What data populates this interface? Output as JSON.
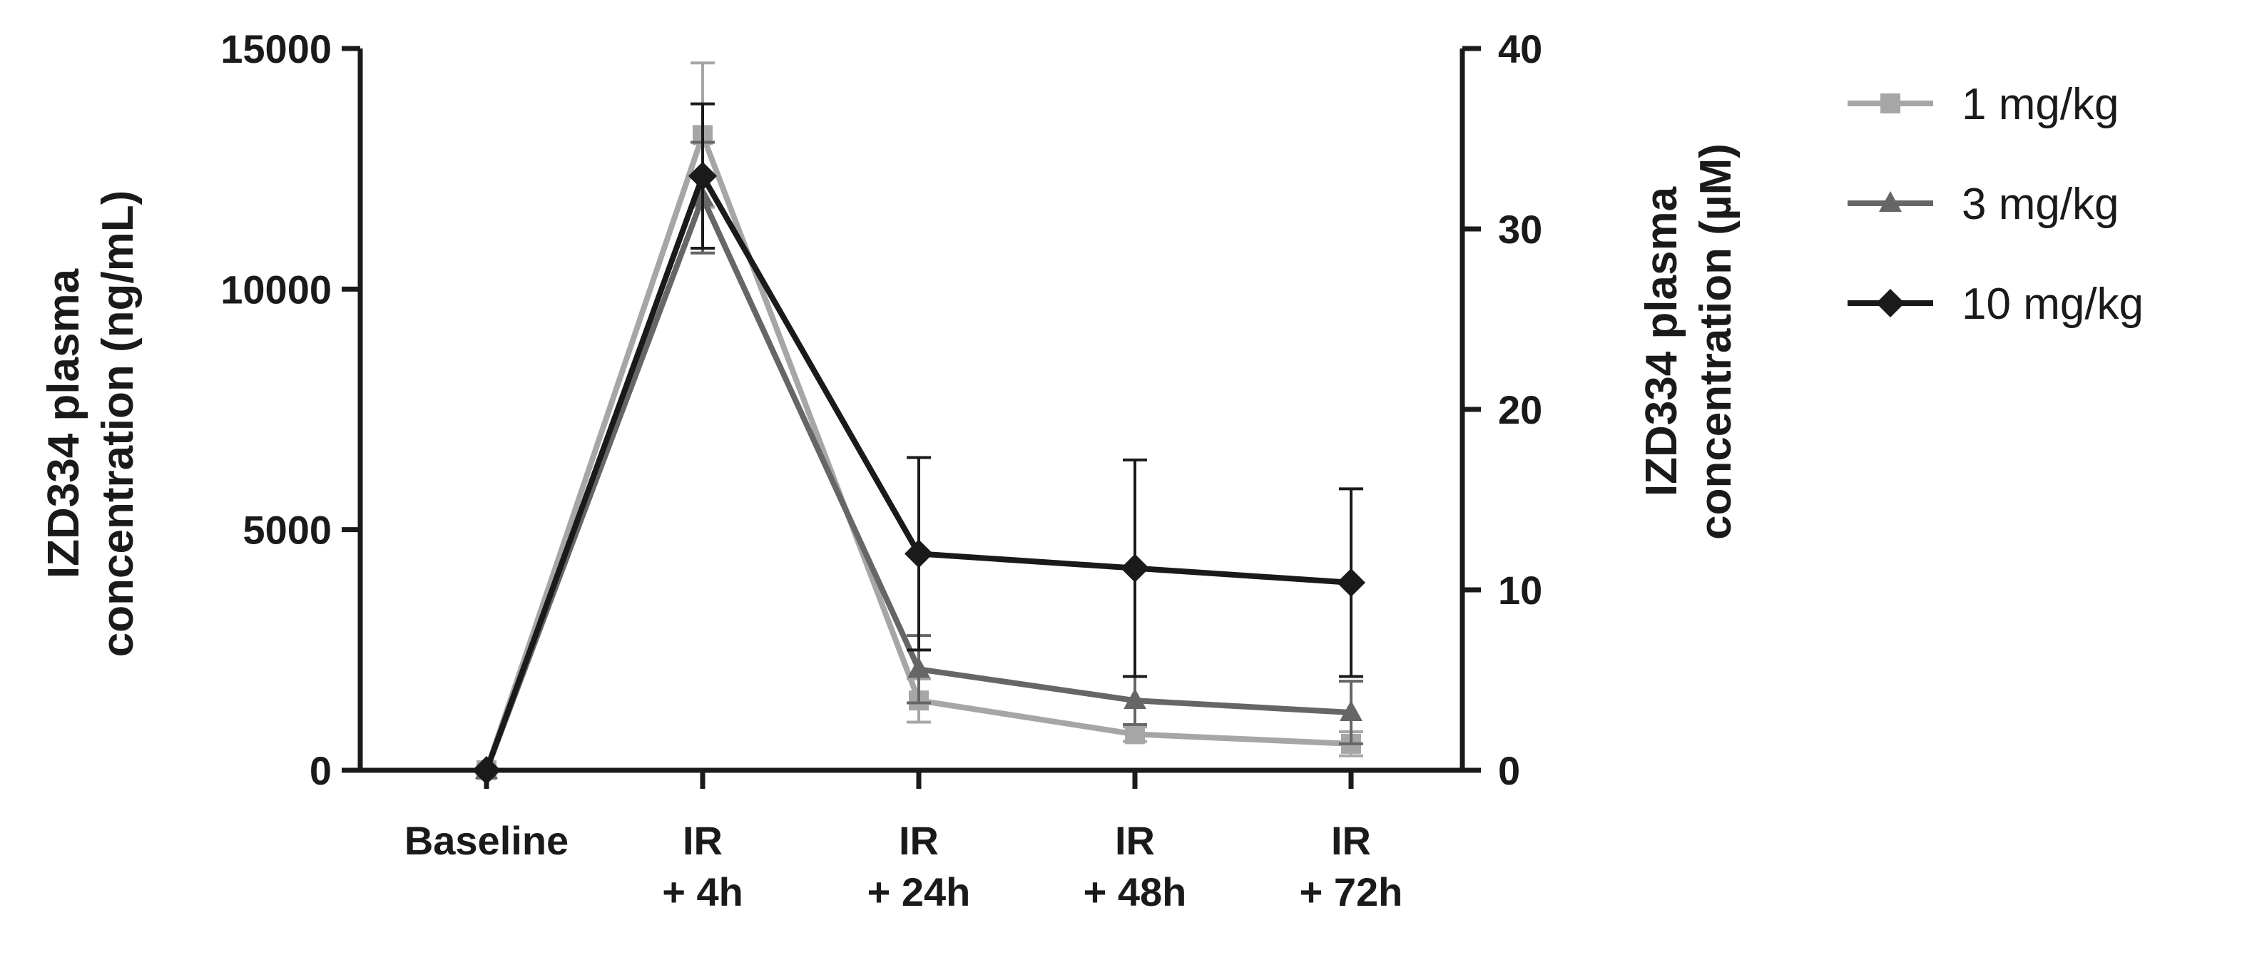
{
  "chart_data": {
    "type": "line",
    "categories": [
      [
        "Baseline"
      ],
      [
        "IR",
        "+ 4h"
      ],
      [
        "IR",
        "+ 24h"
      ],
      [
        "IR",
        "+ 48h"
      ],
      [
        "IR",
        "+ 72h"
      ]
    ],
    "ylabel": [
      "IZD334 plasma",
      "concentration (ng/mL)"
    ],
    "ylim": [
      0,
      15000
    ],
    "yticks": [
      "0",
      "5000",
      "10000",
      "15000"
    ],
    "y2label": [
      "IZD334 plasma",
      "concentration (µM)"
    ],
    "y2lim": [
      0,
      40
    ],
    "y2ticks": [
      "0",
      "10",
      "20",
      "30",
      "40"
    ],
    "legend_position": "top-right",
    "grid": false,
    "series": [
      {
        "name": "1 mg/kg",
        "color": "#a6a6a6",
        "marker": "square",
        "values": [
          0,
          13200,
          1450,
          750,
          550
        ],
        "error": [
          0,
          1500,
          450,
          150,
          250
        ]
      },
      {
        "name": "3 mg/kg",
        "color": "#666666",
        "marker": "triangle",
        "values": [
          0,
          11900,
          2100,
          1450,
          1200
        ],
        "error": [
          0,
          1150,
          700,
          500,
          650
        ]
      },
      {
        "name": "10 mg/kg",
        "color": "#1a1a1a",
        "marker": "diamond",
        "values": [
          0,
          12350,
          4500,
          4200,
          3900
        ],
        "error": [
          0,
          1500,
          2000,
          2250,
          1950
        ]
      }
    ]
  }
}
